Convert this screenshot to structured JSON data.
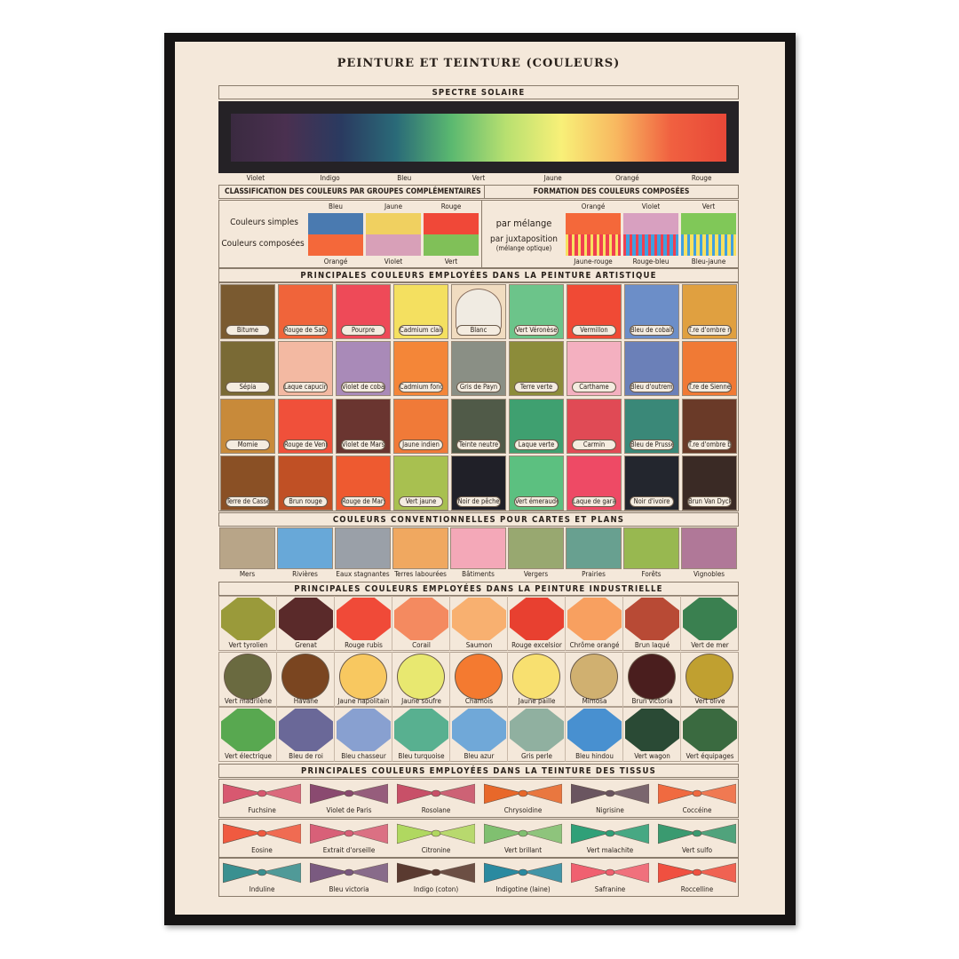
{
  "title": "PEINTURE ET TEINTURE (COULEURS)",
  "spectrum": {
    "header": "SPECTRE SOLAIRE",
    "labels": [
      "Violet",
      "Indigo",
      "Bleu",
      "Vert",
      "Jaune",
      "Orangé",
      "Rouge"
    ],
    "gradient": [
      "#3a2a40",
      "#4a3050",
      "#2a3a60",
      "#2a6a78",
      "#5ab870",
      "#b8e070",
      "#f8f078",
      "#f8b860",
      "#f06040",
      "#e84838"
    ]
  },
  "classification": {
    "header_left": "CLASSIFICATION DES COULEURS PAR GROUPES COMPLÉMENTAIRES",
    "header_right": "FORMATION DES COULEURS COMPOSÉES",
    "row_simple": "Couleurs simples",
    "row_composed": "Couleurs composées",
    "simple": [
      {
        "name": "Bleu",
        "color": "#4a7ab0"
      },
      {
        "name": "Jaune",
        "color": "#f0d060"
      },
      {
        "name": "Rouge",
        "color": "#f04838"
      }
    ],
    "composed": [
      {
        "name": "Orangé",
        "color": "#f4683a"
      },
      {
        "name": "Violet",
        "color": "#d8a0b8"
      },
      {
        "name": "Vert",
        "color": "#80c058"
      }
    ],
    "mix_label": "par mélange",
    "juxt_label": "par juxtaposition",
    "juxt_sub": "(mélange optique)",
    "mix": [
      {
        "name": "Orangé",
        "color": "#f4683a",
        "juxt": "Jaune-rouge",
        "a": "#f8e060",
        "b": "#f04050"
      },
      {
        "name": "Violet",
        "color": "#d8a0c0",
        "juxt": "Rouge-bleu",
        "a": "#f04050",
        "b": "#40a0e0"
      },
      {
        "name": "Vert",
        "color": "#80c858",
        "juxt": "Bleu-jaune",
        "a": "#40a0e0",
        "b": "#f8e060"
      }
    ]
  },
  "artistic": {
    "header": "PRINCIPALES COULEURS EMPLOYÉES DANS LA PEINTURE ARTISTIQUE",
    "rows": [
      [
        [
          "Bitume",
          "#7a5a30"
        ],
        [
          "Rouge de Saturne",
          "#f0643a"
        ],
        [
          "Pourpre",
          "#ee4a58"
        ],
        [
          "Cadmium clair",
          "#f4e060"
        ],
        [
          "Blanc",
          "#f0ebe2"
        ],
        [
          "Vert Véronèse",
          "#6cc48a"
        ],
        [
          "Vermillon",
          "#f04a35"
        ],
        [
          "Bleu de cobalt",
          "#6c8ec8"
        ],
        [
          "T.re d'ombre naturelle",
          "#e0a040"
        ]
      ],
      [
        [
          "Sépia",
          "#7a6a35"
        ],
        [
          "Laque capucine",
          "#f3b9a2"
        ],
        [
          "Violet de cobalt",
          "#a98ab8"
        ],
        [
          "Cadmium foncé",
          "#f48638"
        ],
        [
          "Gris de Payn",
          "#8a8f85"
        ],
        [
          "Terre verte",
          "#8c8c3a"
        ],
        [
          "Carthame",
          "#f4b0c0"
        ],
        [
          "Bleu d'outremer",
          "#6b80b8"
        ],
        [
          "T.re de Sienne brûlée",
          "#f07a35"
        ]
      ],
      [
        [
          "Momie",
          "#c88a3a"
        ],
        [
          "Rouge de Venise",
          "#f0503a"
        ],
        [
          "Violet de Mars",
          "#6a3530"
        ],
        [
          "Jaune indien",
          "#f07a38"
        ],
        [
          "Teinte neutre",
          "#505a48"
        ],
        [
          "Laque verte",
          "#3fa070"
        ],
        [
          "Carmin",
          "#e04a55"
        ],
        [
          "Bleu de Prusse",
          "#3a8878"
        ],
        [
          "T.re d'ombre brûlée",
          "#6a3a28"
        ]
      ],
      [
        [
          "Terre de Cassel",
          "#8a5025"
        ],
        [
          "Brun rouge",
          "#c05025"
        ],
        [
          "Rouge de Mars",
          "#ee5a30"
        ],
        [
          "Vert jaune",
          "#a8c050"
        ],
        [
          "Noir de pêche",
          "#202028"
        ],
        [
          "Vert émeraude",
          "#5cc080"
        ],
        [
          "Laque de garance",
          "#ee4a65"
        ],
        [
          "Noir d'ivoire",
          "#23262e"
        ],
        [
          "Brun Van Dyck",
          "#3a2a25"
        ]
      ]
    ]
  },
  "conventional": {
    "header": "COULEURS CONVENTIONNELLES POUR CARTES ET PLANS",
    "items": [
      [
        "Mers",
        "#b8a588"
      ],
      [
        "Rivières",
        "#68a8d8"
      ],
      [
        "Eaux stagnantes",
        "#9aa0a8"
      ],
      [
        "Terres labourées",
        "#f0a860"
      ],
      [
        "Bâtiments",
        "#f4a8b8"
      ],
      [
        "Vergers",
        "#98a870"
      ],
      [
        "Prairies",
        "#68a090"
      ],
      [
        "Forêts",
        "#98b850"
      ],
      [
        "Vignobles",
        "#b07898"
      ]
    ]
  },
  "industrial": {
    "header": "PRINCIPALES COULEURS EMPLOYÉES DANS LA PEINTURE INDUSTRIELLE",
    "rows": [
      {
        "shape": "octagon",
        "items": [
          [
            "Vert tyrolien",
            "#9a9a3a"
          ],
          [
            "Grenat",
            "#5a2a2a"
          ],
          [
            "Rouge rubis",
            "#f04a38"
          ],
          [
            "Corail",
            "#f48a60"
          ],
          [
            "Saumon",
            "#f8b070"
          ],
          [
            "Rouge excelsior",
            "#e84030"
          ],
          [
            "Chrôme orangé",
            "#f8a060"
          ],
          [
            "Brun laqué",
            "#b84a35"
          ],
          [
            "Vert de mer",
            "#3a8050"
          ]
        ]
      },
      {
        "shape": "circle",
        "items": [
          [
            "Vert madrilène",
            "#6a6a40"
          ],
          [
            "Havane",
            "#7a4520"
          ],
          [
            "Jaune napolitain",
            "#f8c860"
          ],
          [
            "Jaune soufre",
            "#e8e870"
          ],
          [
            "Chamois",
            "#f47a30"
          ],
          [
            "Jaune paille",
            "#f8e070"
          ],
          [
            "Mimosa",
            "#d0b070"
          ],
          [
            "Brun victoria",
            "#4a1e1e"
          ],
          [
            "Vert olive",
            "#c0a030"
          ]
        ]
      },
      {
        "shape": "octagon",
        "items": [
          [
            "Vert électrique",
            "#58a850"
          ],
          [
            "Bleu de roi",
            "#6a6898"
          ],
          [
            "Bleu chasseur",
            "#88a0d0"
          ],
          [
            "Bleu turquoise",
            "#58b090"
          ],
          [
            "Bleu azur",
            "#70a8d8"
          ],
          [
            "Gris perle",
            "#90b0a0"
          ],
          [
            "Bleu hindou",
            "#4890d0"
          ],
          [
            "Vert wagon",
            "#2a4a35"
          ],
          [
            "Vert équipages",
            "#3a6a40"
          ]
        ]
      }
    ]
  },
  "textiles": {
    "header": "PRINCIPALES COULEURS EMPLOYÉES DANS LA TEINTURE DES TISSUS",
    "rows": [
      [
        [
          "Fuchsine",
          "#d85870"
        ],
        [
          "Violet de Paris",
          "#8a4a70"
        ],
        [
          "Rosolane",
          "#c85068"
        ],
        [
          "Chrysoidine",
          "#e8682a"
        ],
        [
          "Nigrisine",
          "#6a5560"
        ],
        [
          "Coccéine",
          "#f06a40"
        ]
      ],
      [
        [
          "Eosine",
          "#f05a40"
        ],
        [
          "Extrait d'orseille",
          "#d86078"
        ],
        [
          "Citronine",
          "#b0d860"
        ],
        [
          "Vert brillant",
          "#80c070"
        ],
        [
          "Vert malachite",
          "#30a078"
        ],
        [
          "Vert sulfo",
          "#3a9a70"
        ]
      ],
      [
        [
          "Induline",
          "#3a9090"
        ],
        [
          "Bleu victoria",
          "#7a5a80"
        ],
        [
          "Indigo (coton)",
          "#5a3a30"
        ],
        [
          "Indigotine (laine)",
          "#2a8aa0"
        ],
        [
          "Safranine",
          "#f06070"
        ],
        [
          "Roccelline",
          "#f05040"
        ]
      ]
    ]
  }
}
